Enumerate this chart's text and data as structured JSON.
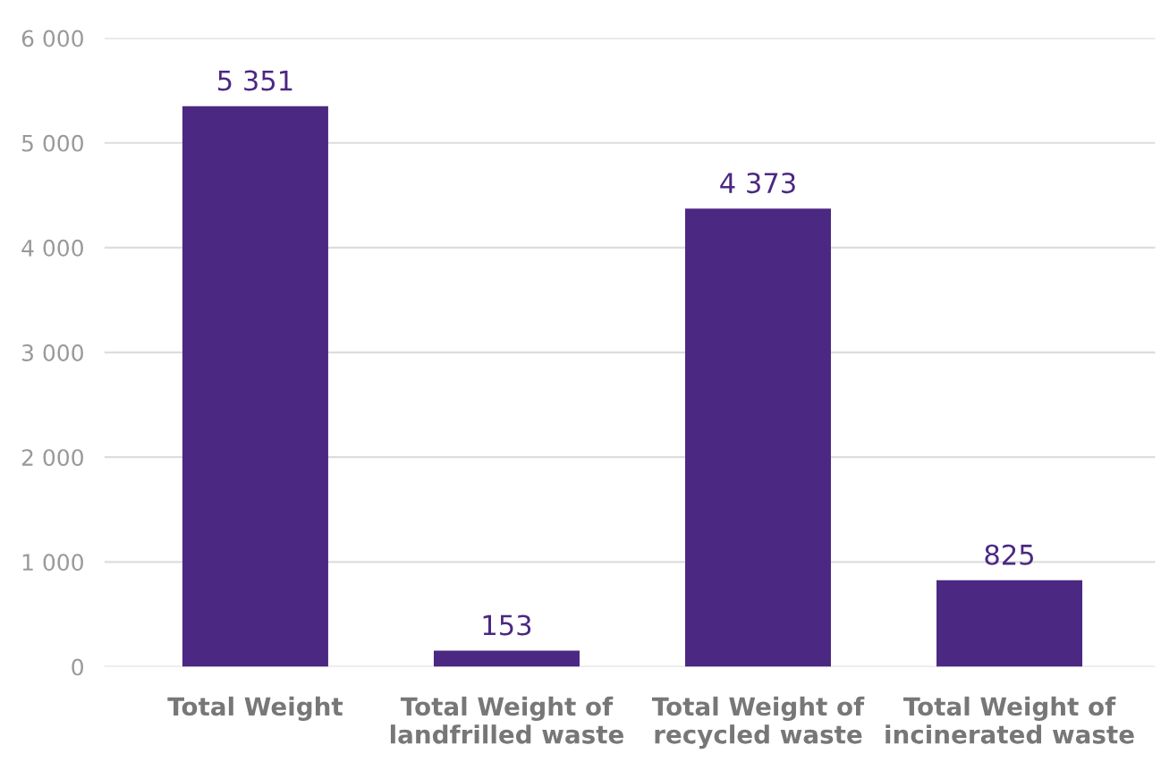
{
  "chart_data": {
    "type": "bar",
    "categories": [
      "Total Weight",
      "Total Weight of\nlandfrilled waste",
      "Total Weight of\nrecycled waste",
      "Total Weight of\nincinerated waste"
    ],
    "values": [
      5351,
      153,
      4373,
      825
    ],
    "value_labels": [
      "5 351",
      "153",
      "4 373",
      "825"
    ],
    "color": "#4b2882",
    "ylim": [
      0,
      6000
    ],
    "yticks": [
      0,
      {
        "value": 1000,
        "label": "1 000"
      },
      {
        "value": 2000,
        "label": "2 000"
      },
      {
        "value": 3000,
        "label": "3 000"
      },
      {
        "value": 4000,
        "label": "4 000"
      },
      {
        "value": 5000,
        "label": "5 000"
      },
      {
        "value": 6000,
        "label": "6 000"
      }
    ],
    "grid": "y",
    "legend": false
  }
}
